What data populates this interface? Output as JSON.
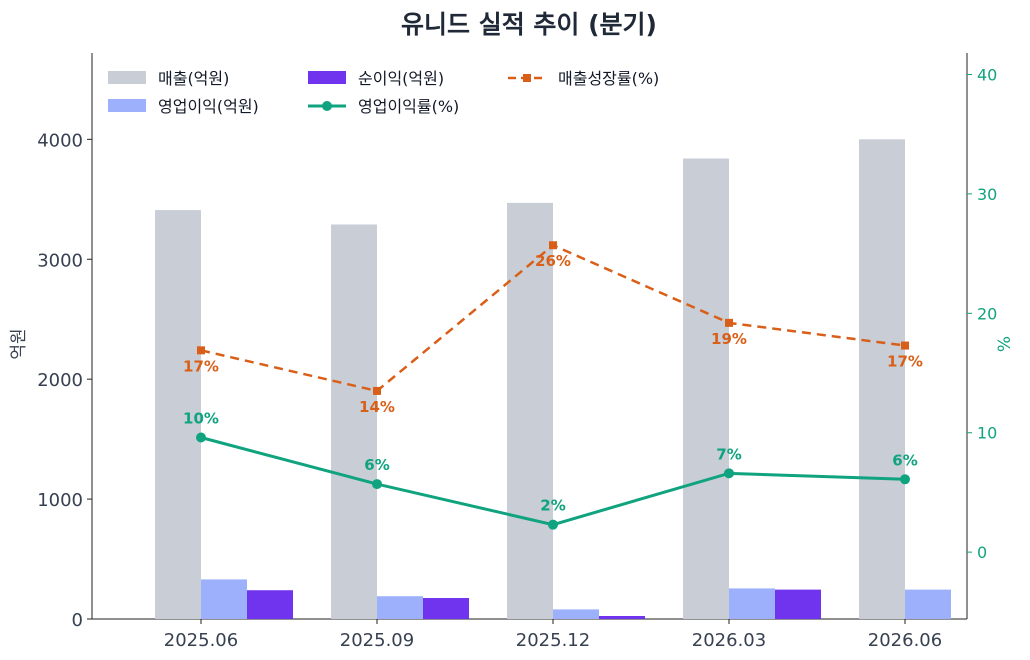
{
  "chart_data": {
    "type": "bar",
    "title": "유니드 실적 추이 (분기)",
    "categories": [
      "2025.06",
      "2025.09",
      "2025.12",
      "2026.03",
      "2026.06"
    ],
    "ylabel": "억원",
    "y2label": "%",
    "ylim": [
      0,
      4720
    ],
    "y2lim": [
      -5.6,
      41.8
    ],
    "yticks": [
      0,
      1000,
      2000,
      3000,
      4000
    ],
    "y2ticks": [
      0,
      10,
      20,
      30,
      40
    ],
    "grid": false,
    "legend_position": "top-left",
    "series": [
      {
        "name": "매출(억원)",
        "type": "bar",
        "axis": "left",
        "color": "#c8cdd6",
        "values": [
          3410,
          3290,
          3470,
          3840,
          4000
        ]
      },
      {
        "name": "영업이익(억원)",
        "type": "bar",
        "axis": "left",
        "color": "#9cb0fb",
        "values": [
          330,
          190,
          80,
          255,
          245
        ]
      },
      {
        "name": "순이익(억원)",
        "type": "bar",
        "axis": "left",
        "color": "#7033ee",
        "values": [
          240,
          175,
          25,
          245,
          0
        ]
      },
      {
        "name": "영업이익률(%)",
        "type": "line",
        "axis": "right",
        "color": "#10a37f",
        "style": "solid",
        "marker": "circle",
        "values": [
          9.6,
          5.7,
          2.3,
          6.6,
          6.1
        ],
        "labels": [
          "10%",
          "6%",
          "2%",
          "7%",
          "6%"
        ]
      },
      {
        "name": "매출성장률(%)",
        "type": "line",
        "axis": "right",
        "color": "#d95f18",
        "style": "dashed",
        "marker": "square",
        "values": [
          16.9,
          13.5,
          25.7,
          19.2,
          17.3
        ],
        "labels": [
          "17%",
          "14%",
          "26%",
          "19%",
          "17%"
        ]
      }
    ]
  }
}
